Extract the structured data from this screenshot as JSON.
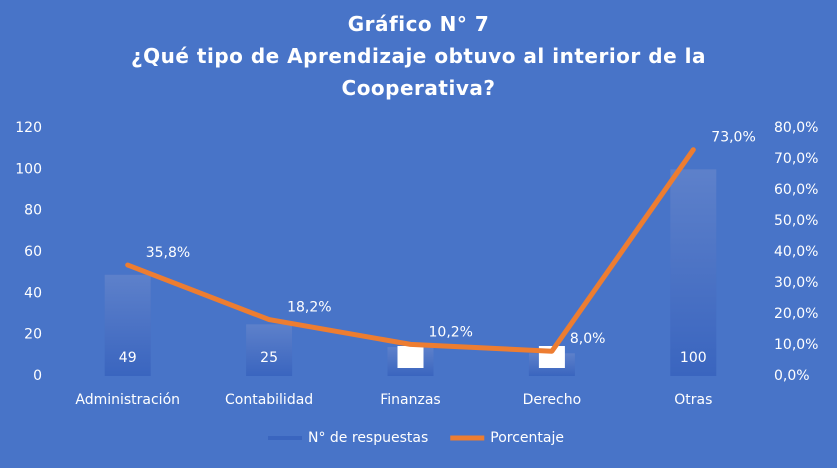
{
  "chart_data": {
    "type": "combo",
    "title": "Gráfico N° 7",
    "subtitle": "¿Qué tipo de Aprendizaje obtuvo al interior de la Cooperativa?",
    "categories": [
      "Administración",
      "Contabilidad",
      "Finanzas",
      "Derecho",
      "Otras"
    ],
    "series": [
      {
        "name": "N° de respuestas",
        "type": "bar",
        "color": "#3a65bf",
        "values": [
          49,
          25,
          14,
          11,
          100
        ]
      },
      {
        "name": "Porcentaje",
        "type": "line",
        "axis": "y2",
        "color": "#ed7d31",
        "values": [
          35.8,
          18.2,
          10.2,
          8.0,
          73.0
        ],
        "value_labels": [
          "35,8%",
          "18,2%",
          "10,2%",
          "8,0%",
          "73,0%"
        ]
      }
    ],
    "ylim": [
      0,
      120
    ],
    "yticks": [
      0,
      20,
      40,
      60,
      80,
      100,
      120
    ],
    "y2lim": [
      0,
      80
    ],
    "y2ticks": [
      {
        "value": 0,
        "label": "0,0%"
      },
      {
        "value": 10,
        "label": "10,0%"
      },
      {
        "value": 20,
        "label": "20,0%"
      },
      {
        "value": 30,
        "label": "30,0%"
      },
      {
        "value": 40,
        "label": "40,0%"
      },
      {
        "value": 50,
        "label": "50,0%"
      },
      {
        "value": 60,
        "label": "60,0%"
      },
      {
        "value": 70,
        "label": "70,0%"
      },
      {
        "value": 80,
        "label": "80,0%"
      }
    ],
    "legend": "bottom"
  }
}
